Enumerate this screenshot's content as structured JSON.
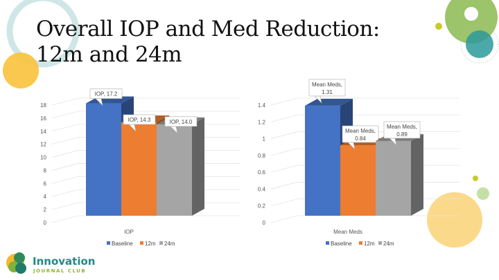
{
  "slide": {
    "title_line1": "Overall IOP and Med Reduction:",
    "title_line2": "12m and 24m",
    "logo": {
      "name": "Innovation",
      "subtitle": "JOURNAL CLUB"
    }
  },
  "colors": {
    "baseline": "#4472c4",
    "12m": "#ed7d31",
    "24m": "#a5a5a5"
  },
  "chart_data": [
    {
      "type": "bar",
      "title": "",
      "categories": [
        "IOP"
      ],
      "series": [
        {
          "name": "Baseline",
          "values": [
            17.2
          ],
          "label": "IOP, 17.2"
        },
        {
          "name": "12m",
          "values": [
            14.3
          ],
          "label": "IOP, 14.3"
        },
        {
          "name": "24m",
          "values": [
            14.0
          ],
          "label": "IOP, 14.0"
        }
      ],
      "ylim": [
        0,
        18
      ],
      "yticks": [
        "0",
        "2",
        "4",
        "6",
        "8",
        "10",
        "12",
        "14",
        "16",
        "18"
      ],
      "legend": "bottom"
    },
    {
      "type": "bar",
      "title": "",
      "categories": [
        "Mean Meds"
      ],
      "series": [
        {
          "name": "Baseline",
          "values": [
            1.31
          ],
          "label": "Mean Meds, 1.31"
        },
        {
          "name": "12m",
          "values": [
            0.84
          ],
          "label": "Mean Meds, 0.84"
        },
        {
          "name": "24m",
          "values": [
            0.89
          ],
          "label": "Mean Meds, 0.89"
        }
      ],
      "ylim": [
        0,
        1.4
      ],
      "yticks": [
        "0",
        "0.2",
        "0.4",
        "0.6",
        "0.8",
        "1",
        "1.2",
        "1.4"
      ],
      "legend": "bottom"
    }
  ]
}
